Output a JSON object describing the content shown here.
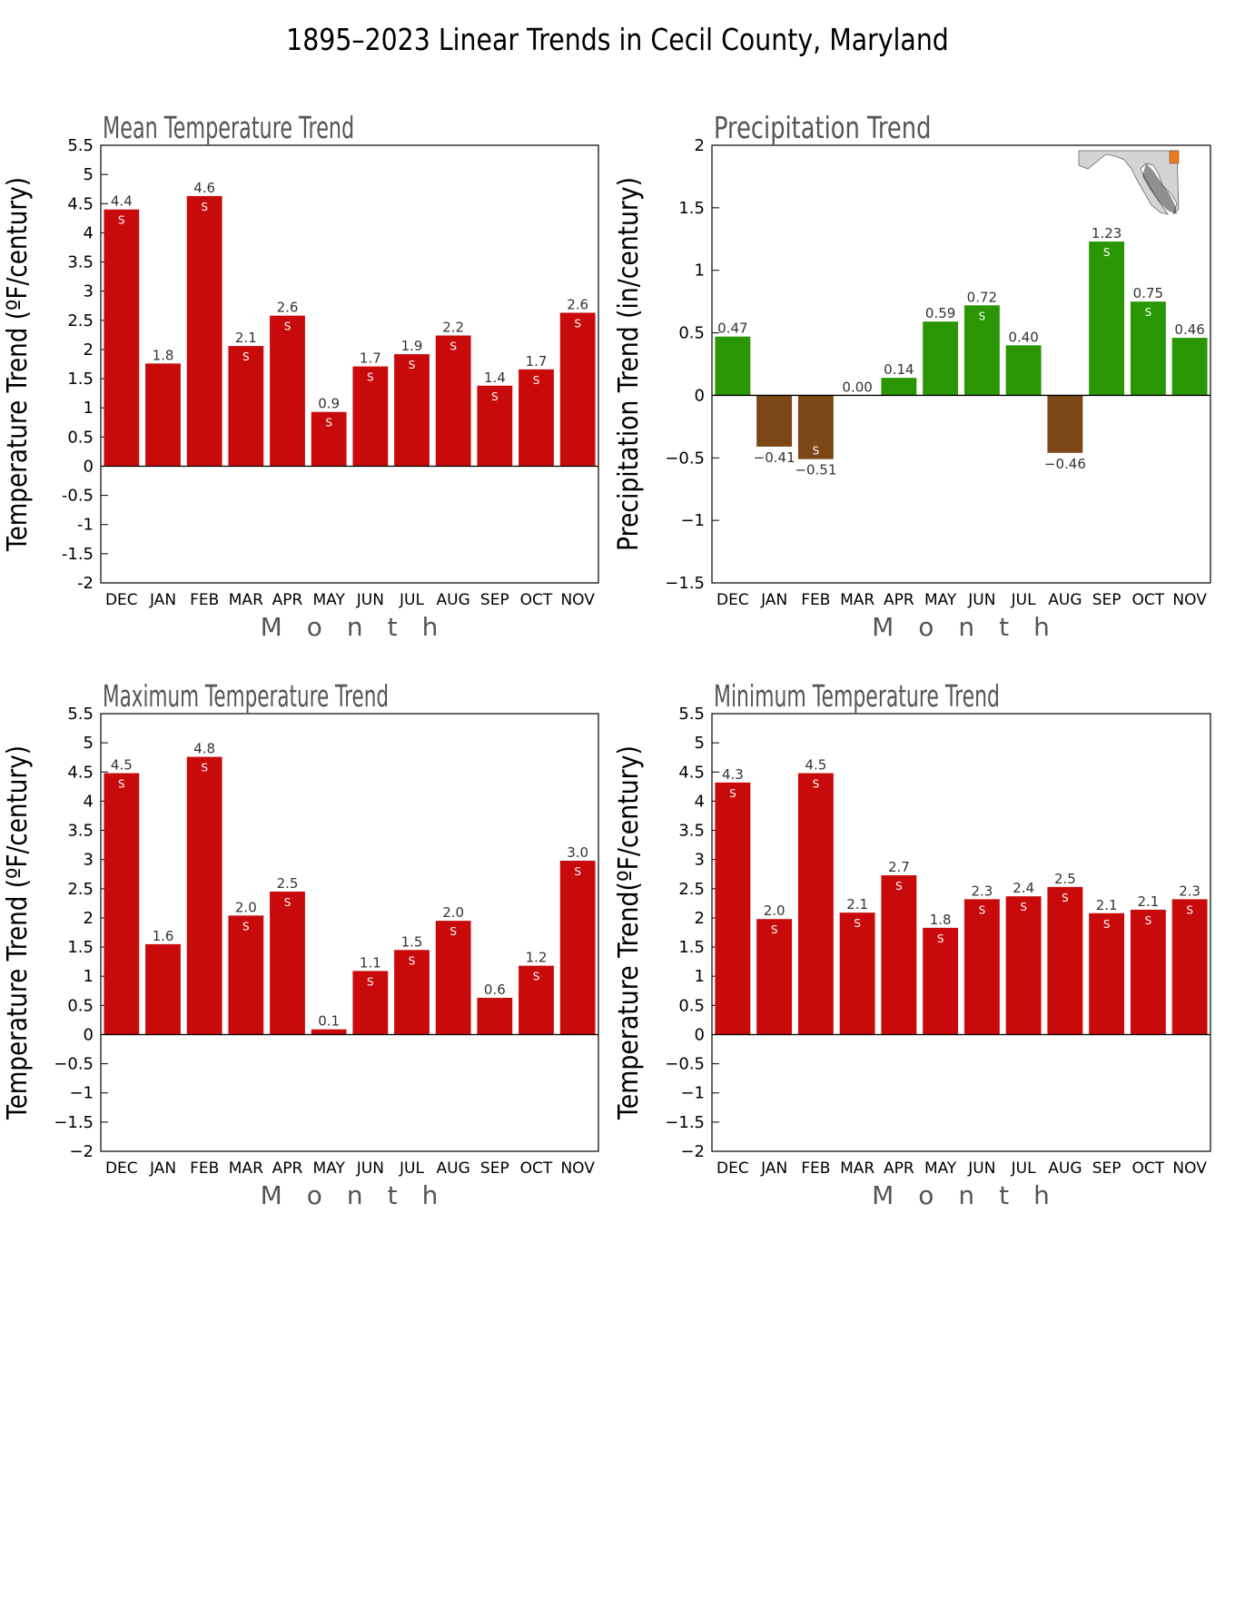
{
  "figure_title": "1895–2023 Linear Trends in Cecil County, Maryland",
  "colors": {
    "temperature": "#c80a0a",
    "precip_positive": "#2a9604",
    "precip_negative": "#7c4616",
    "map_land": "#d4d4d4",
    "map_highlight": "#f07a18"
  },
  "chart_data": [
    {
      "type": "bar",
      "title": "Mean Temperature Trend",
      "ylabel": "Temperature Trend (ºF/century)",
      "xlabel": "Month",
      "categories": [
        "DEC",
        "JAN",
        "FEB",
        "MAR",
        "APR",
        "MAY",
        "JUN",
        "JUL",
        "AUG",
        "SEP",
        "OCT",
        "NOV"
      ],
      "values": [
        4.4,
        1.76,
        4.63,
        2.06,
        2.58,
        0.93,
        1.71,
        1.92,
        2.24,
        1.38,
        1.66,
        2.63
      ],
      "labels": [
        "4.4",
        "1.8",
        "4.6",
        "2.1",
        "2.6",
        "0.9",
        "1.7",
        "1.9",
        "2.2",
        "1.4",
        "1.7",
        "2.6"
      ],
      "significant": [
        true,
        false,
        true,
        true,
        true,
        true,
        true,
        true,
        true,
        true,
        true,
        true
      ],
      "sig_mark": "S",
      "ylim": [
        -2,
        5.5
      ],
      "yticks": [
        "-2",
        "-1.5",
        "-1",
        "-0.5",
        "0",
        "0.5",
        "1",
        "1.5",
        "2",
        "2.5",
        "3",
        "3.5",
        "4",
        "4.5",
        "5",
        "5.5"
      ]
    },
    {
      "type": "bar",
      "title": "Precipitation Trend",
      "ylabel": "Precipitation Trend (in/century)",
      "xlabel": "Month",
      "categories": [
        "DEC",
        "JAN",
        "FEB",
        "MAR",
        "APR",
        "MAY",
        "JUN",
        "JUL",
        "AUG",
        "SEP",
        "OCT",
        "NOV"
      ],
      "values": [
        0.47,
        -0.41,
        -0.51,
        0.0,
        0.14,
        0.59,
        0.72,
        0.4,
        -0.46,
        1.23,
        0.75,
        0.46
      ],
      "labels": [
        "0.47",
        "−0.41",
        "−0.51",
        "0.00",
        "0.14",
        "0.59",
        "0.72",
        "0.40",
        "−0.46",
        "1.23",
        "0.75",
        "0.46"
      ],
      "significant": [
        false,
        false,
        true,
        false,
        false,
        false,
        true,
        false,
        false,
        true,
        true,
        false
      ],
      "sig_mark": "S",
      "ylim": [
        -1.5,
        2
      ],
      "yticks": [
        "−1.5",
        "−1",
        "−0.5",
        "0",
        "0.5",
        "1",
        "1.5",
        "2"
      ]
    },
    {
      "type": "bar",
      "title": "Maximum Temperature Trend",
      "ylabel": "Temperature Trend (ºF/century)",
      "xlabel": "Month",
      "categories": [
        "DEC",
        "JAN",
        "FEB",
        "MAR",
        "APR",
        "MAY",
        "JUN",
        "JUL",
        "AUG",
        "SEP",
        "OCT",
        "NOV"
      ],
      "values": [
        4.48,
        1.55,
        4.76,
        2.04,
        2.45,
        0.09,
        1.09,
        1.45,
        1.95,
        0.63,
        1.18,
        2.98
      ],
      "labels": [
        "4.5",
        "1.6",
        "4.8",
        "2.0",
        "2.5",
        "0.1",
        "1.1",
        "1.5",
        "2.0",
        "0.6",
        "1.2",
        "3.0"
      ],
      "significant": [
        true,
        false,
        true,
        true,
        true,
        false,
        true,
        true,
        true,
        false,
        true,
        true
      ],
      "sig_mark": "S",
      "ylim": [
        -2,
        5.5
      ],
      "yticks": [
        "−2",
        "−1.5",
        "−1",
        "−0.5",
        "0",
        "0.5",
        "1",
        "1.5",
        "2",
        "2.5",
        "3",
        "3.5",
        "4",
        "4.5",
        "5",
        "5.5"
      ]
    },
    {
      "type": "bar",
      "title": "Minimum Temperature Trend",
      "ylabel": "Temperature Trend(ºF/century)",
      "xlabel": "Month",
      "categories": [
        "DEC",
        "JAN",
        "FEB",
        "MAR",
        "APR",
        "MAY",
        "JUN",
        "JUL",
        "AUG",
        "SEP",
        "OCT",
        "NOV"
      ],
      "values": [
        4.32,
        1.98,
        4.48,
        2.09,
        2.73,
        1.83,
        2.32,
        2.37,
        2.53,
        2.08,
        2.14,
        2.32
      ],
      "labels": [
        "4.3",
        "2.0",
        "4.5",
        "2.1",
        "2.7",
        "1.8",
        "2.3",
        "2.4",
        "2.5",
        "2.1",
        "2.1",
        "2.3"
      ],
      "significant": [
        true,
        true,
        true,
        true,
        true,
        true,
        true,
        true,
        true,
        true,
        true,
        true
      ],
      "sig_mark": "S",
      "ylim": [
        -2,
        5.5
      ],
      "yticks": [
        "−2",
        "−1.5",
        "−1",
        "−0.5",
        "0",
        "0.5",
        "1",
        "1.5",
        "2",
        "2.5",
        "3",
        "3.5",
        "4",
        "4.5",
        "5",
        "5.5"
      ]
    }
  ]
}
